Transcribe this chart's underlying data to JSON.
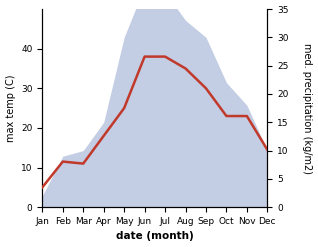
{
  "months": [
    "Jan",
    "Feb",
    "Mar",
    "Apr",
    "May",
    "Jun",
    "Jul",
    "Aug",
    "Sep",
    "Oct",
    "Nov",
    "Dec"
  ],
  "temp": [
    5,
    11.5,
    11,
    18,
    25,
    38,
    38,
    35,
    30,
    23,
    23,
    14.5
  ],
  "precip": [
    2,
    9,
    10,
    15,
    30,
    39,
    38,
    33,
    30,
    22,
    18,
    10
  ],
  "temp_color": "#c0392b",
  "precip_color": "#aab8d8",
  "ylabel_left": "max temp (C)",
  "ylabel_right": "med. precipitation (kg/m2)",
  "xlabel": "date (month)",
  "ylim_left": [
    0,
    50
  ],
  "ylim_right": [
    0,
    35
  ],
  "bg_color": "#ffffff",
  "label_fontsize": 7,
  "tick_fontsize": 6.5
}
